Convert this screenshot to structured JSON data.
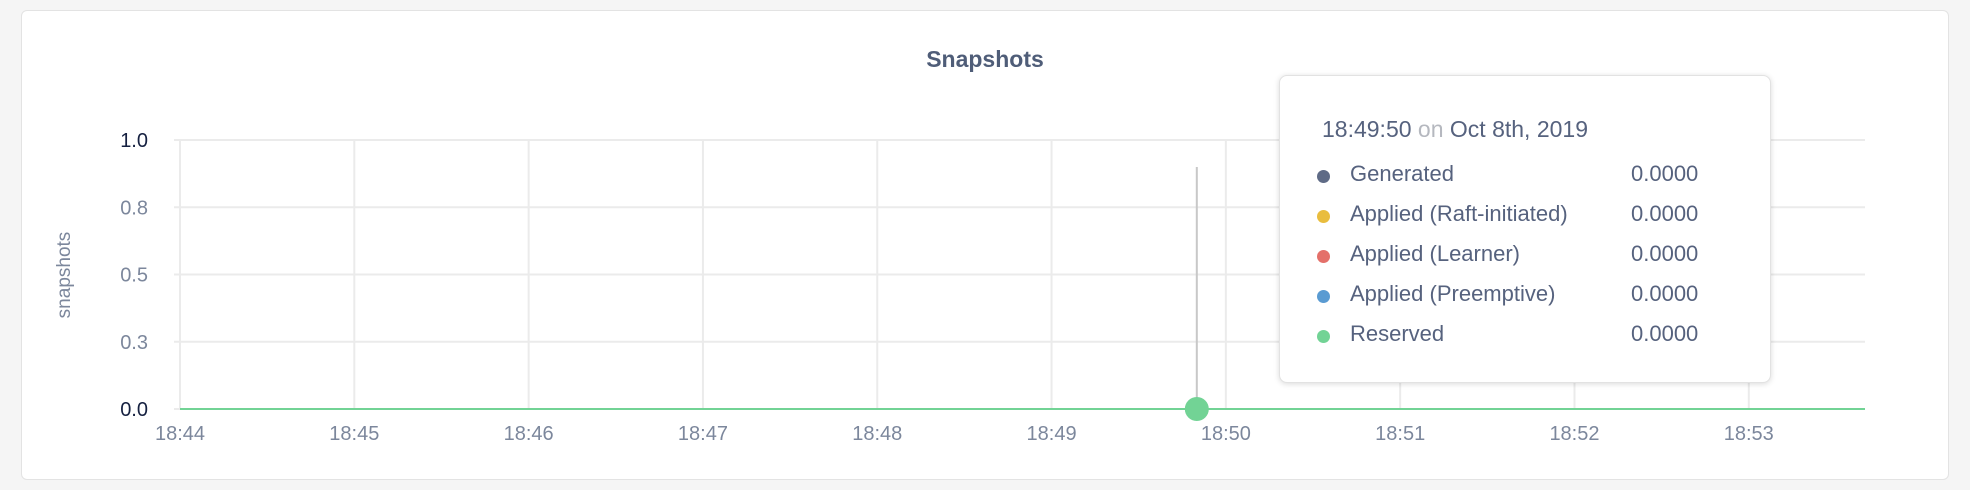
{
  "chart_data": {
    "type": "line",
    "title": "Snapshots",
    "ylabel": "snapshots",
    "xlabel": "",
    "ylim": [
      0,
      1
    ],
    "yticks": [
      0,
      0.25,
      0.5,
      0.75,
      1.0
    ],
    "ytick_labels": [
      "0.0",
      "0.3",
      "0.5",
      "0.8",
      "1.0"
    ],
    "xlim": [
      "18:44:00",
      "18:53:40"
    ],
    "xtick_labels": [
      "18:44",
      "18:45",
      "18:46",
      "18:47",
      "18:48",
      "18:49",
      "18:50",
      "18:51",
      "18:52",
      "18:53"
    ],
    "grid": true,
    "x": [
      "18:44:00",
      "18:45:00",
      "18:46:00",
      "18:47:00",
      "18:48:00",
      "18:49:00",
      "18:50:00",
      "18:51:00",
      "18:52:00",
      "18:53:00",
      "18:53:40"
    ],
    "series": [
      {
        "name": "Generated",
        "color": "#5f6b86",
        "values": [
          0,
          0,
          0,
          0,
          0,
          0,
          0,
          0,
          0,
          0,
          0
        ]
      },
      {
        "name": "Applied (Raft-initiated)",
        "color": "#e9bd3e",
        "values": [
          0,
          0,
          0,
          0,
          0,
          0,
          0,
          0,
          0,
          0,
          0
        ]
      },
      {
        "name": "Applied (Learner)",
        "color": "#e4706a",
        "values": [
          0,
          0,
          0,
          0,
          0,
          0,
          0,
          0,
          0,
          0,
          0
        ]
      },
      {
        "name": "Applied (Preemptive)",
        "color": "#5a9bd2",
        "values": [
          0,
          0,
          0,
          0,
          0,
          0,
          0,
          0,
          0,
          0,
          0
        ]
      },
      {
        "name": "Reserved",
        "color": "#72d395",
        "values": [
          0,
          0,
          0,
          0,
          0,
          0,
          0,
          0,
          0,
          0,
          0
        ]
      }
    ],
    "hover": {
      "x": "18:49:50",
      "time": "18:49:50",
      "on": "on",
      "date": "Oct 8th, 2019",
      "values": [
        "0.0000",
        "0.0000",
        "0.0000",
        "0.0000",
        "0.0000"
      ]
    }
  }
}
